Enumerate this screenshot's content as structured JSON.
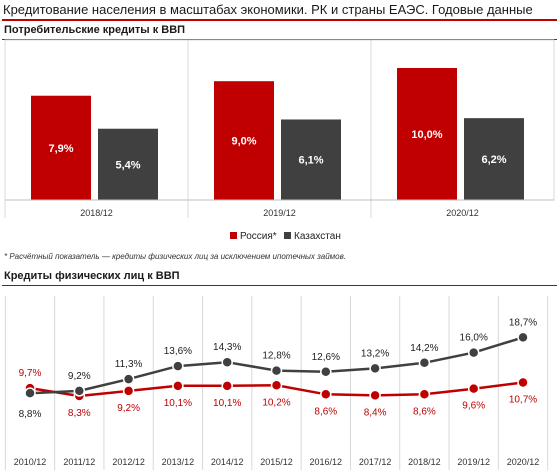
{
  "header": {
    "title": "Кредитование населения в масштабах экономики. РК и страны ЕАЭС. Годовые данные"
  },
  "colors": {
    "russia": "#c00000",
    "kazakhstan": "#404040",
    "accent": "#c00000"
  },
  "chart_data": [
    {
      "type": "bar",
      "title": "Потребительские  кредиты к ВВП",
      "categories": [
        "2018/12",
        "2019/12",
        "2020/12"
      ],
      "series": [
        {
          "name": "Россия*",
          "values": [
            7.9,
            9.0,
            10.0
          ],
          "labels": [
            "7,9%",
            "9,0%",
            "10,0%"
          ]
        },
        {
          "name": "Казахстан",
          "values": [
            5.4,
            6.1,
            6.2
          ],
          "labels": [
            "5,4%",
            "6,1%",
            "6,2%"
          ]
        }
      ],
      "legend_position": "bottom",
      "footnote": "* Расчётный показатель — кредиты физических лиц за исключением ипотечных займов."
    },
    {
      "type": "line",
      "title": "Кредиты физических  лиц к ВВП",
      "categories": [
        "2010/12",
        "2011/12",
        "2012/12",
        "2013/12",
        "2014/12",
        "2015/12",
        "2016/12",
        "2017/12",
        "2018/12",
        "2019/12",
        "2020/12"
      ],
      "series": [
        {
          "values": [
            9.7,
            8.3,
            9.2,
            10.1,
            10.1,
            10.2,
            8.6,
            8.4,
            8.6,
            9.6,
            10.7
          ],
          "labels": [
            "9,7%",
            "8,3%",
            "9,2%",
            "10,1%",
            "10,1%",
            "10,2%",
            "8,6%",
            "8,4%",
            "8,6%",
            "9,6%",
            "10,7%"
          ]
        },
        {
          "values": [
            8.8,
            9.2,
            11.3,
            13.6,
            14.3,
            12.8,
            12.6,
            13.2,
            14.2,
            16.0,
            18.7
          ],
          "labels": [
            "8,8%",
            "9,2%",
            "11,3%",
            "13,6%",
            "14,3%",
            "12,8%",
            "12,6%",
            "13,2%",
            "14,2%",
            "16,0%",
            "18,7%"
          ]
        }
      ]
    }
  ]
}
